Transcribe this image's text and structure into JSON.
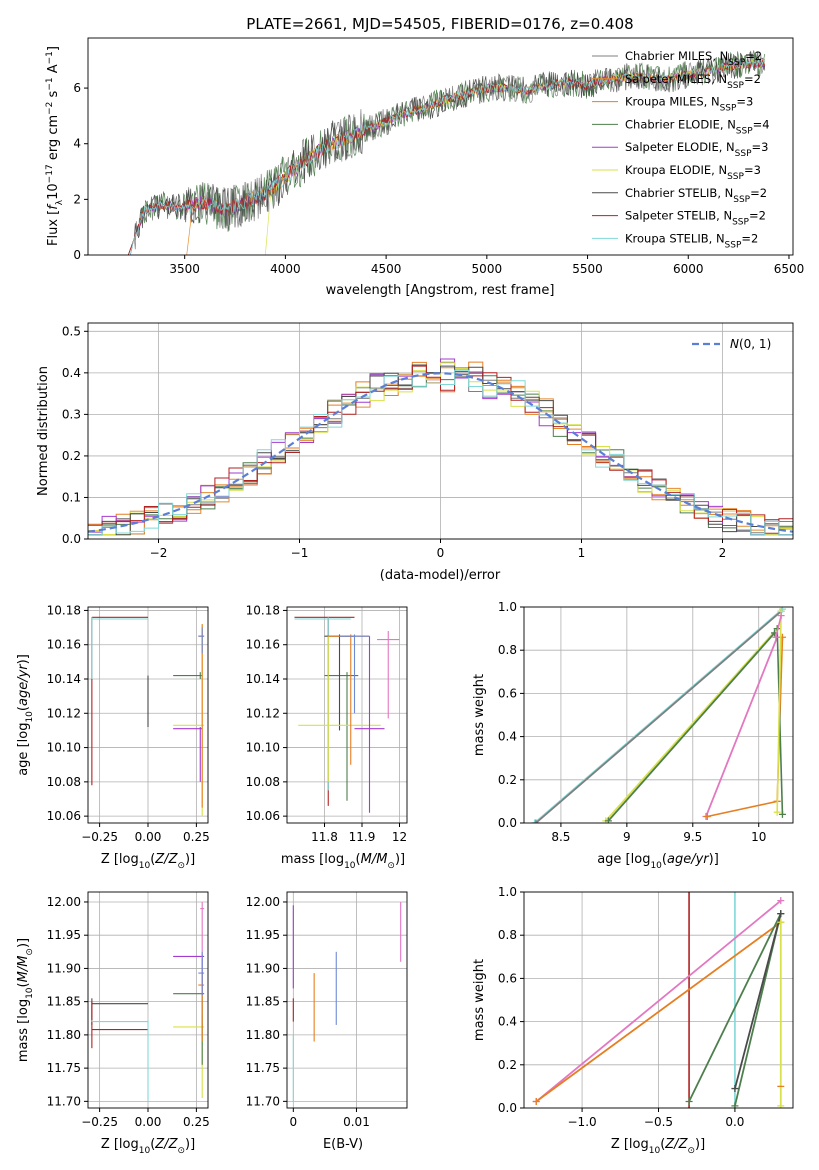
{
  "figure_title": "PLATE=2661, MJD=54505, FIBERID=0176, z=0.408",
  "model_colors": [
    "#7f7f7f",
    "#e58a2c",
    "#e67e22",
    "#4d7f4d",
    "#a23bd0",
    "#d9e14a",
    "#4a4a4a",
    "#b22222",
    "#80d8d8"
  ],
  "model_labels": [
    "Chabrier MILES, N_SSP=2",
    "Salpeter MILES, N_SSP=2",
    "Kroupa MILES, N_SSP=3",
    "Chabrier ELODIE, N_SSP=4",
    "Salpeter ELODIE, N_SSP=3",
    "Kroupa ELODIE, N_SSP=3",
    "Chabrier STELIB, N_SSP=2",
    "Salpeter STELIB, N_SSP=2",
    "Kroupa STELIB, N_SSP=2"
  ],
  "chart_data": [
    {
      "id": "spectrum",
      "type": "line",
      "xlabel": "wavelength [Angstrom, rest frame]",
      "ylabel": "Flux [f_λ 10^-17 erg cm^-2 s^-1 A^-1]",
      "xlim": [
        3020,
        6520
      ],
      "ylim": [
        0,
        7.8
      ],
      "xticks": [
        3500,
        4000,
        4500,
        5000,
        5500,
        6000,
        6500
      ],
      "yticks": [
        0,
        2,
        4,
        6
      ],
      "grid": false,
      "legend": "right",
      "data_x": [
        3220,
        3300,
        3400,
        3500,
        3600,
        3700,
        3800,
        3900,
        4000,
        4100,
        4200,
        4300,
        4400,
        4500,
        4600,
        4700,
        4800,
        4900,
        5000,
        5100,
        5200,
        5300,
        5400,
        5500,
        5600,
        5700,
        5800,
        5900,
        6000,
        6100,
        6200,
        6350
      ],
      "data_y": [
        0.0,
        1.6,
        1.8,
        1.7,
        1.9,
        1.6,
        1.9,
        2.2,
        2.8,
        3.4,
        3.9,
        4.2,
        4.5,
        4.8,
        5.1,
        5.3,
        5.6,
        5.8,
        6.0,
        6.0,
        5.9,
        6.1,
        6.2,
        6.1,
        6.3,
        6.4,
        6.4,
        6.3,
        6.5,
        6.6,
        6.8,
        6.9
      ]
    },
    {
      "id": "residuals",
      "type": "bar",
      "xlabel": "(data-model)/error",
      "ylabel": "Normed distribution",
      "xlim": [
        -2.5,
        2.5
      ],
      "ylim": [
        0,
        0.52
      ],
      "xticks": [
        -2,
        -1,
        0,
        1,
        2
      ],
      "yticks": [
        0.0,
        0.1,
        0.2,
        0.3,
        0.4,
        0.5
      ],
      "grid": true,
      "legend": "top-right",
      "gaussian_label": "N(0,1)",
      "bin_width": 0.1
    },
    {
      "id": "age_vs_z",
      "type": "scatter",
      "xlabel": "Z [log10(Z/Z⊙)]",
      "ylabel": "age  [log10(age/yr)]",
      "xlim": [
        -0.31,
        0.31
      ],
      "ylim": [
        10.056,
        10.182
      ],
      "xticks": [
        -0.25,
        0.0,
        0.25
      ],
      "xtick_labels": [
        "−0.25",
        "0.00",
        "0.25"
      ],
      "yticks": [
        10.06,
        10.08,
        10.1,
        10.12,
        10.14,
        10.16,
        10.18
      ],
      "grid": true
    },
    {
      "id": "age_vs_mass",
      "type": "scatter",
      "xlabel": "mass [log10(M/M⊙)]",
      "ylabel": "",
      "xlim": [
        11.7,
        12.02
      ],
      "ylim": [
        10.056,
        10.182
      ],
      "xticks": [
        11.8,
        11.9,
        12.0
      ],
      "yticks": [
        10.06,
        10.08,
        10.1,
        10.12,
        10.14,
        10.16,
        10.18
      ],
      "grid": true
    },
    {
      "id": "weight_vs_age",
      "type": "line",
      "xlabel": "age  [log10(age/yr)]",
      "ylabel": "mass weight",
      "xlim": [
        8.22,
        10.26
      ],
      "ylim": [
        0,
        1.0
      ],
      "xticks": [
        8.5,
        9.0,
        9.5,
        10.0
      ],
      "yticks": [
        0.0,
        0.2,
        0.4,
        0.6,
        0.8,
        1.0
      ],
      "grid": true
    },
    {
      "id": "mass_vs_z",
      "type": "scatter",
      "xlabel": "Z [log10(Z/Z⊙)]",
      "ylabel": "mass [log10(M/M⊙)]",
      "xlim": [
        -0.31,
        0.31
      ],
      "ylim": [
        11.69,
        12.015
      ],
      "xticks": [
        -0.25,
        0.0,
        0.25
      ],
      "xtick_labels": [
        "−0.25",
        "0.00",
        "0.25"
      ],
      "yticks": [
        11.7,
        11.75,
        11.8,
        11.85,
        11.9,
        11.95,
        12.0
      ],
      "grid": true
    },
    {
      "id": "mass_vs_ebv",
      "type": "scatter",
      "xlabel": "E(B-V)",
      "ylabel": "",
      "xlim": [
        -0.001,
        0.018
      ],
      "ylim": [
        11.69,
        12.015
      ],
      "xticks": [
        0.0,
        0.01
      ],
      "yticks": [
        11.7,
        11.75,
        11.8,
        11.85,
        11.9,
        11.95,
        12.0
      ],
      "grid": true
    },
    {
      "id": "weight_vs_z",
      "type": "line",
      "xlabel": "Z [log10(Z/Z⊙)]",
      "ylabel": "mass weight",
      "xlim": [
        -1.38,
        0.38
      ],
      "ylim": [
        0,
        1.0
      ],
      "xticks": [
        -1.0,
        -0.5,
        0.0
      ],
      "xtick_labels": [
        "−1.0",
        "−0.5",
        "0.0"
      ],
      "yticks": [
        0.0,
        0.2,
        0.4,
        0.6,
        0.8,
        1.0
      ],
      "grid": true
    }
  ]
}
